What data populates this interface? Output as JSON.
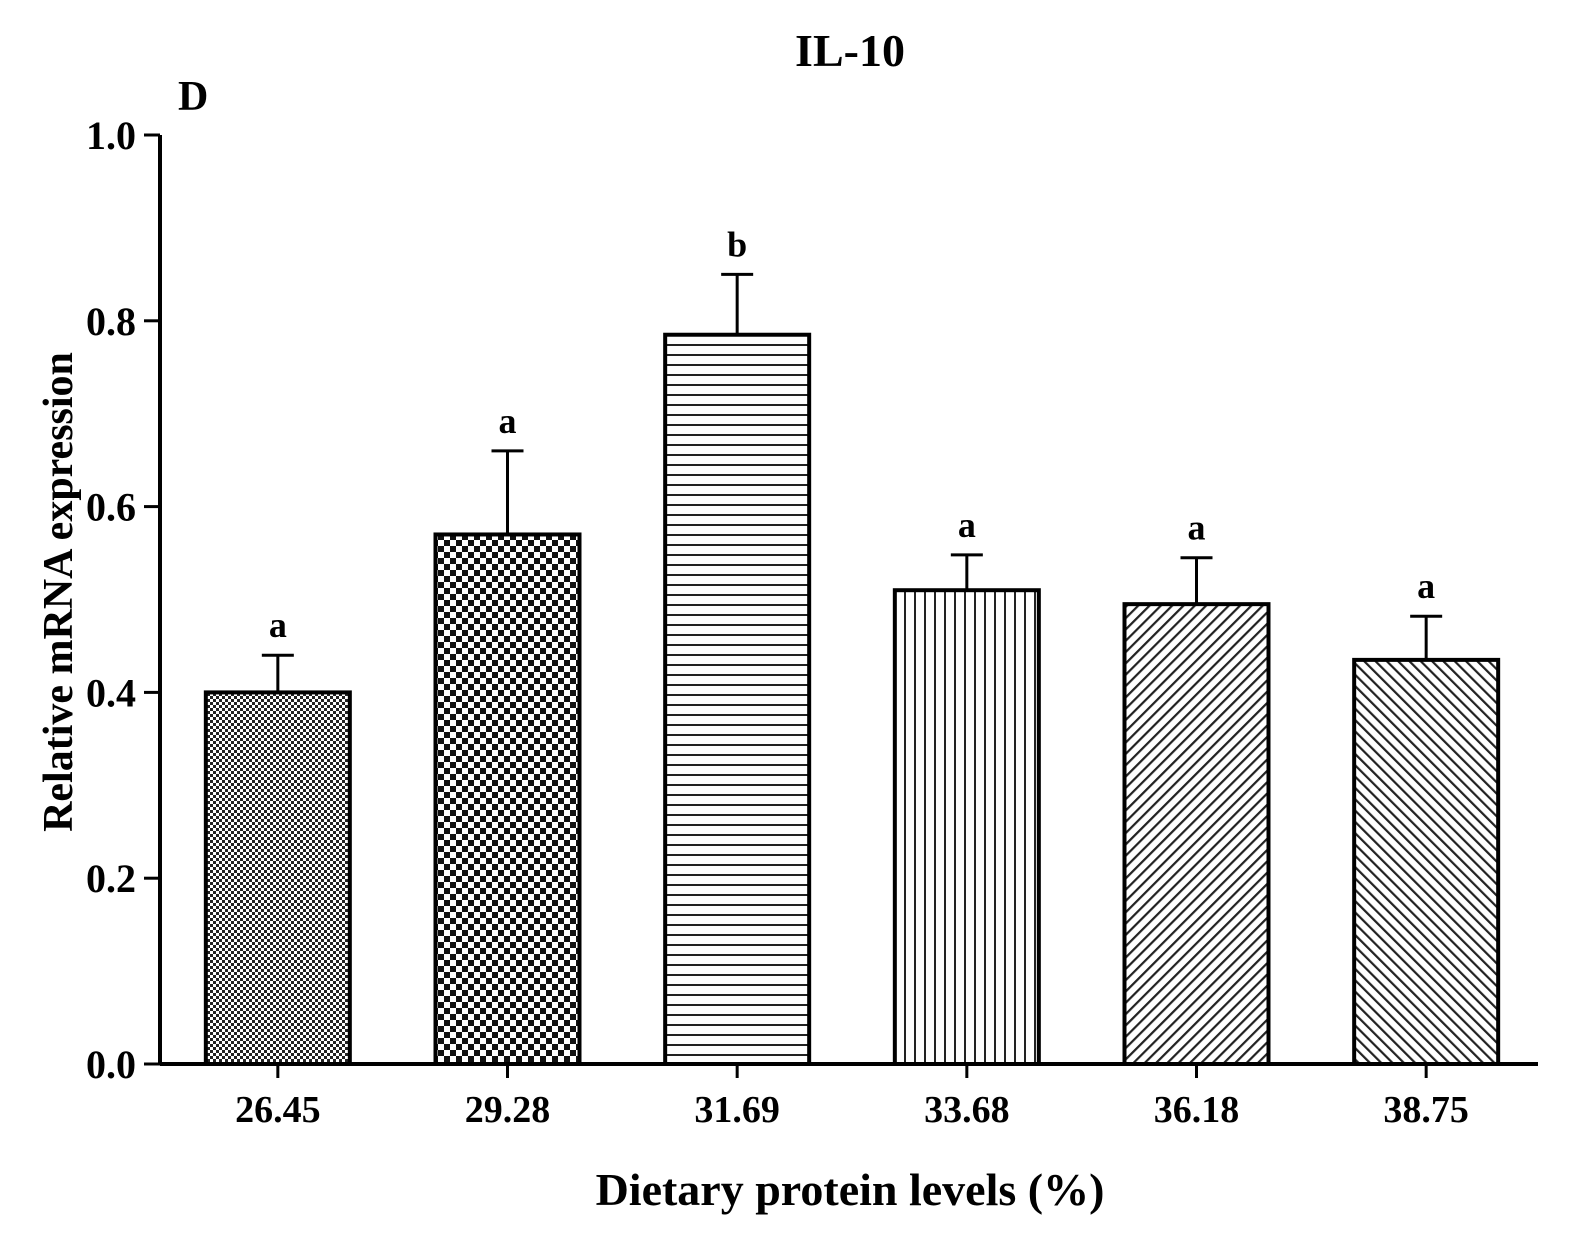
{
  "panel_label": "D",
  "chart_data": {
    "type": "bar",
    "title": "IL-10",
    "xlabel": "Dietary protein levels (%)",
    "ylabel": "Relative mRNA expression",
    "ylim": [
      0,
      1.0
    ],
    "yticks": [
      "0.0",
      "0.2",
      "0.4",
      "0.6",
      "0.8",
      "1.0"
    ],
    "grid": false,
    "categories": [
      "26.45",
      "29.28",
      "31.69",
      "33.68",
      "36.18",
      "38.75"
    ],
    "values": [
      0.4,
      0.57,
      0.785,
      0.51,
      0.495,
      0.435
    ],
    "errors": [
      0.04,
      0.09,
      0.065,
      0.038,
      0.05,
      0.047
    ],
    "significance": [
      "a",
      "a",
      "b",
      "a",
      "a",
      "a"
    ],
    "patterns": [
      "fine-check",
      "checkerboard",
      "horizontal-lines",
      "vertical-lines",
      "diagonal-forward",
      "diagonal-back"
    ]
  }
}
